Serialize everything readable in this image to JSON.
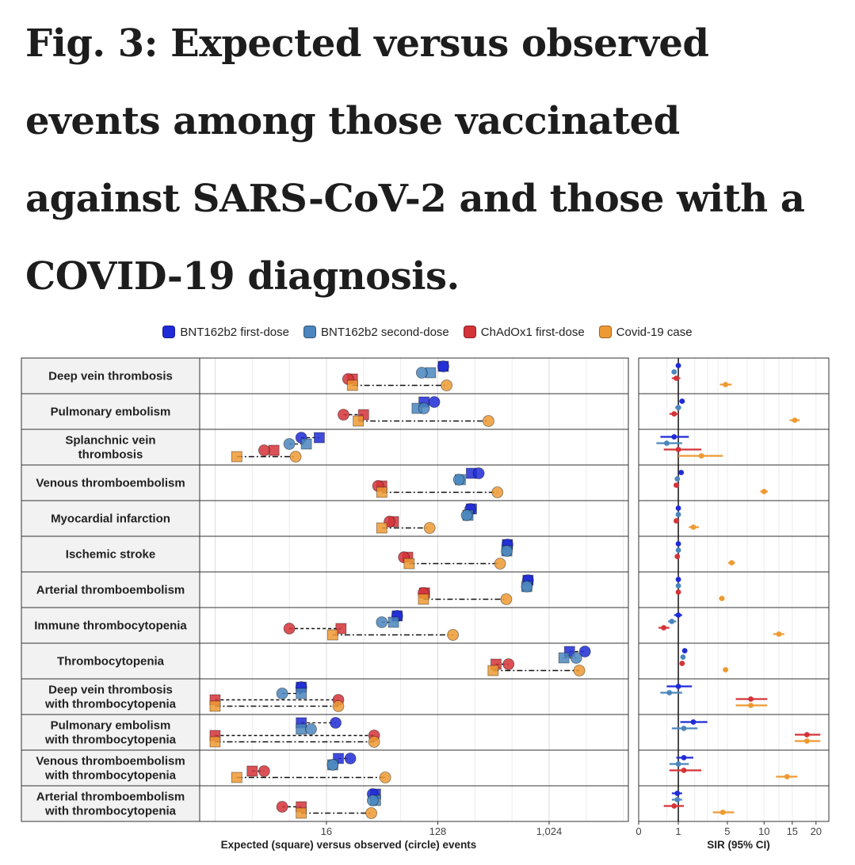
{
  "title": "Fig. 3: Expected versus observed events among those vaccinated against SARS-CoV-2 and those with a COVID-19 diagnosis.",
  "chart_data": {
    "type": "scatter",
    "legend": [
      {
        "name": "BNT162b2 first-dose",
        "color": "#1f2bd6"
      },
      {
        "name": "BNT162b2 second-dose",
        "color": "#4a86bd"
      },
      {
        "name": "ChAdOx1 first-dose",
        "color": "#d43338"
      },
      {
        "name": "Covid-19 case",
        "color": "#ee9a33"
      }
    ],
    "left_panel": {
      "xlabel": "Expected (square) versus observed (circle) events",
      "x_scale": "log2",
      "xlim": [
        1.5,
        4500
      ],
      "ticks": [
        "16",
        "128",
        "1,024"
      ],
      "tick_values": [
        16,
        128,
        1024
      ]
    },
    "right_panel": {
      "xlabel": "SIR (95% CI)",
      "x_scale": "sqrt",
      "xlim": [
        0,
        23
      ],
      "ticks": [
        "0",
        "1",
        "5",
        "10",
        "15",
        "20"
      ],
      "tick_values": [
        0,
        1,
        5,
        10,
        15,
        20
      ],
      "reference_line": 1
    },
    "outcomes": [
      {
        "label": [
          "Deep vein thrombosis"
        ],
        "expected": [
          142,
          112,
          26,
          26
        ],
        "observed": [
          142,
          95,
          24,
          151
        ],
        "sir": [
          [
            1.0,
            0.92,
            1.08
          ],
          [
            0.8,
            0.7,
            0.92
          ],
          [
            0.9,
            0.7,
            1.1
          ],
          [
            4.8,
            4.2,
            5.5
          ]
        ]
      },
      {
        "label": [
          "Pulmonary embolism"
        ],
        "expected": [
          99,
          87,
          32,
          29
        ],
        "observed": [
          120,
          99,
          22,
          330
        ],
        "sir": [
          [
            1.2,
            1.05,
            1.35
          ],
          [
            1.0,
            0.85,
            1.15
          ],
          [
            0.8,
            0.6,
            1.0
          ],
          [
            15.5,
            14.5,
            16.5
          ]
        ]
      },
      {
        "label": [
          "Splanchnic vein",
          "thrombosis"
        ],
        "expected": [
          14,
          11,
          6,
          3
        ],
        "observed": [
          10,
          8,
          5,
          9
        ],
        "sir": [
          [
            0.8,
            0.3,
            1.6
          ],
          [
            0.5,
            0.2,
            1.2
          ],
          [
            1.0,
            0.4,
            2.5
          ],
          [
            2.5,
            1.0,
            4.5
          ]
        ]
      },
      {
        "label": [
          "Venous thromboembolism"
        ],
        "expected": [
          240,
          195,
          45,
          45
        ],
        "observed": [
          275,
          190,
          42,
          390
        ],
        "sir": [
          [
            1.15,
            1.05,
            1.25
          ],
          [
            0.95,
            0.87,
            1.05
          ],
          [
            0.9,
            0.78,
            1.02
          ],
          [
            10.0,
            9.4,
            10.6
          ]
        ]
      },
      {
        "label": [
          "Myocardial infarction"
        ],
        "expected": [
          240,
          225,
          56,
          45
        ],
        "observed": [
          235,
          220,
          52,
          110
        ],
        "sir": [
          [
            1.0,
            0.95,
            1.05
          ],
          [
            1.0,
            0.94,
            1.06
          ],
          [
            0.9,
            0.8,
            1.0
          ],
          [
            1.9,
            1.6,
            2.3
          ]
        ]
      },
      {
        "label": [
          "Ischemic stroke"
        ],
        "expected": [
          470,
          465,
          73,
          75
        ],
        "observed": [
          470,
          465,
          68,
          410
        ],
        "sir": [
          [
            1.0,
            0.95,
            1.05
          ],
          [
            1.0,
            0.94,
            1.06
          ],
          [
            0.95,
            0.85,
            1.05
          ],
          [
            5.5,
            5.1,
            5.9
          ]
        ]
      },
      {
        "label": [
          "Arterial thromboembolism"
        ],
        "expected": [
          690,
          675,
          100,
          98
        ],
        "observed": [
          690,
          675,
          98,
          460
        ],
        "sir": [
          [
            1.0,
            0.96,
            1.04
          ],
          [
            1.0,
            0.95,
            1.05
          ],
          [
            1.0,
            0.92,
            1.08
          ],
          [
            4.4,
            4.1,
            4.7
          ]
        ]
      },
      {
        "label": [
          "Immune thrombocytopenia"
        ],
        "expected": [
          60,
          56,
          21,
          18
        ],
        "observed": [
          60,
          45,
          8,
          170
        ],
        "sir": [
          [
            1.0,
            0.8,
            1.2
          ],
          [
            0.7,
            0.55,
            0.9
          ],
          [
            0.4,
            0.25,
            0.6
          ],
          [
            12.5,
            11.5,
            13.5
          ]
        ]
      },
      {
        "label": [
          "Thrombocytopenia"
        ],
        "expected": [
          1500,
          1350,
          380,
          360
        ],
        "observed": [
          2000,
          1700,
          480,
          1800
        ],
        "sir": [
          [
            1.35,
            1.28,
            1.42
          ],
          [
            1.25,
            1.18,
            1.32
          ],
          [
            1.2,
            1.1,
            1.3
          ],
          [
            4.8,
            4.5,
            5.1
          ]
        ]
      },
      {
        "label": [
          "Deep vein thrombosis",
          "with thrombocytopenia"
        ],
        "expected": [
          10,
          10,
          2,
          2
        ],
        "observed": [
          10,
          7,
          20,
          20
        ],
        "sir": [
          [
            1.0,
            0.5,
            1.8
          ],
          [
            0.6,
            0.3,
            1.2
          ],
          [
            8.0,
            6.0,
            10.5
          ],
          [
            8.0,
            6.0,
            10.5
          ]
        ]
      },
      {
        "label": [
          "Pulmonary embolism",
          "with thrombocytopenia"
        ],
        "expected": [
          10,
          10,
          2,
          2
        ],
        "observed": [
          19,
          12,
          39,
          39
        ],
        "sir": [
          [
            1.9,
            1.1,
            3.0
          ],
          [
            1.3,
            0.7,
            2.2
          ],
          [
            18.0,
            15.5,
            21.0
          ],
          [
            18.0,
            15.5,
            21.0
          ]
        ]
      },
      {
        "label": [
          "Venous thromboembolism",
          "with thrombocytopenia"
        ],
        "expected": [
          20,
          18,
          4,
          3
        ],
        "observed": [
          25,
          18,
          5,
          48
        ],
        "sir": [
          [
            1.3,
            0.9,
            1.9
          ],
          [
            1.0,
            0.6,
            1.6
          ],
          [
            1.3,
            0.6,
            2.5
          ],
          [
            14.0,
            12.0,
            16.0
          ]
        ]
      },
      {
        "label": [
          "Arterial thromboembolism",
          "with thrombocytopenia"
        ],
        "expected": [
          40,
          40,
          10,
          10
        ],
        "observed": [
          38,
          38,
          7,
          37
        ],
        "sir": [
          [
            0.95,
            0.7,
            1.2
          ],
          [
            0.95,
            0.7,
            1.2
          ],
          [
            0.8,
            0.4,
            1.3
          ],
          [
            4.5,
            3.5,
            5.8
          ]
        ]
      }
    ]
  }
}
